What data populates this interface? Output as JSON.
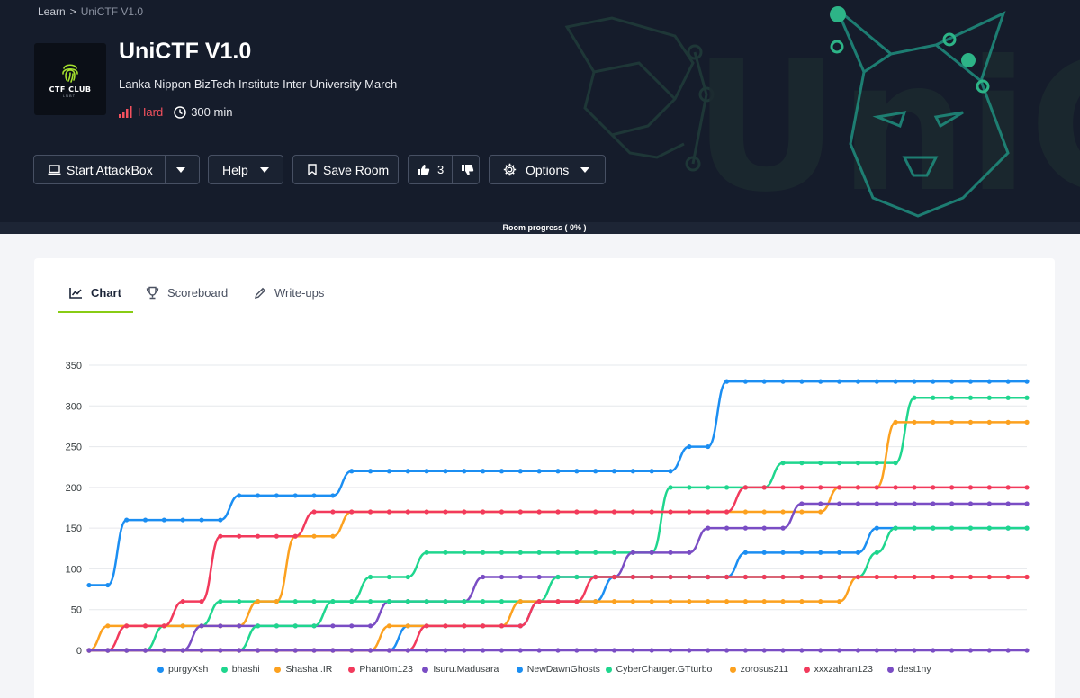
{
  "breadcrumb": {
    "root": "Learn",
    "sep": ">",
    "current": "UniCTF V1.0"
  },
  "room": {
    "logo_text": "CTF CLUB",
    "logo_sub": "LNBTI",
    "title": "UniCTF V1.0",
    "description": "Lanka Nippon BizTech Institute Inter-University March",
    "difficulty": "Hard",
    "duration": "300 min",
    "difficulty_color": "#f4515e"
  },
  "banner_text": "UniCTF",
  "toolbar": {
    "attackbox_label": "Start AttackBox",
    "help_label": "Help",
    "save_label": "Save Room",
    "likes": "3",
    "options_label": "Options"
  },
  "progress": {
    "label": "Room progress ( 0% )",
    "value": 0
  },
  "tabs": [
    {
      "label": "Chart",
      "active": true
    },
    {
      "label": "Scoreboard",
      "active": false
    },
    {
      "label": "Write-ups",
      "active": false
    }
  ],
  "accent_color": "#88cc14",
  "chart_data": {
    "type": "line",
    "ylim": [
      0,
      350
    ],
    "yticks": [
      0,
      50,
      100,
      150,
      200,
      250,
      300,
      350
    ],
    "n_points": 51,
    "series": [
      {
        "name": "purgyXsh",
        "color": "#1b8ef2",
        "steps": [
          [
            0,
            80
          ],
          [
            2,
            160
          ],
          [
            8,
            190
          ],
          [
            14,
            220
          ],
          [
            32,
            250
          ],
          [
            34,
            330
          ]
        ]
      },
      {
        "name": "bhashi",
        "color": "#1fd68e",
        "steps": [
          [
            0,
            0
          ],
          [
            4,
            30
          ],
          [
            7,
            60
          ],
          [
            15,
            90
          ],
          [
            18,
            120
          ],
          [
            31,
            200
          ],
          [
            37,
            230
          ],
          [
            44,
            310
          ]
        ]
      },
      {
        "name": "Shasha..IR",
        "color": "#fca11f",
        "steps": [
          [
            0,
            0
          ],
          [
            1,
            30
          ],
          [
            9,
            60
          ],
          [
            11,
            140
          ],
          [
            14,
            170
          ],
          [
            40,
            200
          ],
          [
            43,
            280
          ]
        ]
      },
      {
        "name": "Phant0m123",
        "color": "#f23a5c",
        "steps": [
          [
            0,
            0
          ],
          [
            2,
            30
          ],
          [
            5,
            60
          ],
          [
            7,
            140
          ],
          [
            12,
            170
          ],
          [
            35,
            200
          ]
        ]
      },
      {
        "name": "Isuru.Madusara",
        "color": "#7a4dc4",
        "steps": [
          [
            0,
            0
          ],
          [
            6,
            30
          ],
          [
            16,
            60
          ],
          [
            21,
            90
          ],
          [
            29,
            120
          ],
          [
            33,
            150
          ],
          [
            38,
            180
          ]
        ]
      },
      {
        "name": "NewDawnGhosts",
        "color": "#1b8ef2",
        "steps": [
          [
            0,
            0
          ],
          [
            17,
            30
          ],
          [
            24,
            60
          ],
          [
            28,
            90
          ],
          [
            35,
            120
          ],
          [
            42,
            150
          ]
        ]
      },
      {
        "name": "CyberCharger.GTturbo",
        "color": "#1fd68e",
        "steps": [
          [
            0,
            0
          ],
          [
            9,
            30
          ],
          [
            13,
            60
          ],
          [
            25,
            90
          ],
          [
            42,
            120
          ],
          [
            43,
            150
          ]
        ]
      },
      {
        "name": "zorosus211",
        "color": "#fca11f",
        "steps": [
          [
            0,
            0
          ],
          [
            16,
            30
          ],
          [
            23,
            60
          ],
          [
            41,
            90
          ]
        ]
      },
      {
        "name": "xxxzahran123",
        "color": "#f23a5c",
        "steps": [
          [
            0,
            0
          ],
          [
            18,
            30
          ],
          [
            24,
            60
          ],
          [
            27,
            90
          ]
        ]
      },
      {
        "name": "dest1ny",
        "color": "#7a4dc4",
        "steps": [
          [
            0,
            0
          ]
        ]
      }
    ]
  }
}
